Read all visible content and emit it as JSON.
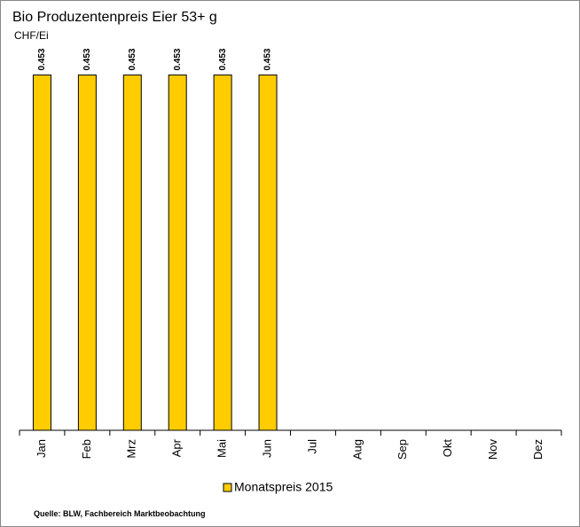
{
  "chart_data": {
    "type": "bar",
    "title": "Bio Produzentenpreis Eier 53+ g",
    "y_label": "CHF/Ei",
    "categories": [
      "Jan",
      "Feb",
      "Mrz",
      "Apr",
      "Mai",
      "Jun",
      "Jul",
      "Aug",
      "Sep",
      "Okt",
      "Nov",
      "Dez"
    ],
    "series": [
      {
        "name": "Monatspreis 2015",
        "color": "#ffcc00",
        "values": [
          0.453,
          0.453,
          0.453,
          0.453,
          0.453,
          0.453,
          null,
          null,
          null,
          null,
          null,
          null
        ]
      }
    ],
    "ylim": [
      0,
      0.5
    ],
    "source": "Quelle: BLW, Fachbereich Marktbeobachtung"
  }
}
